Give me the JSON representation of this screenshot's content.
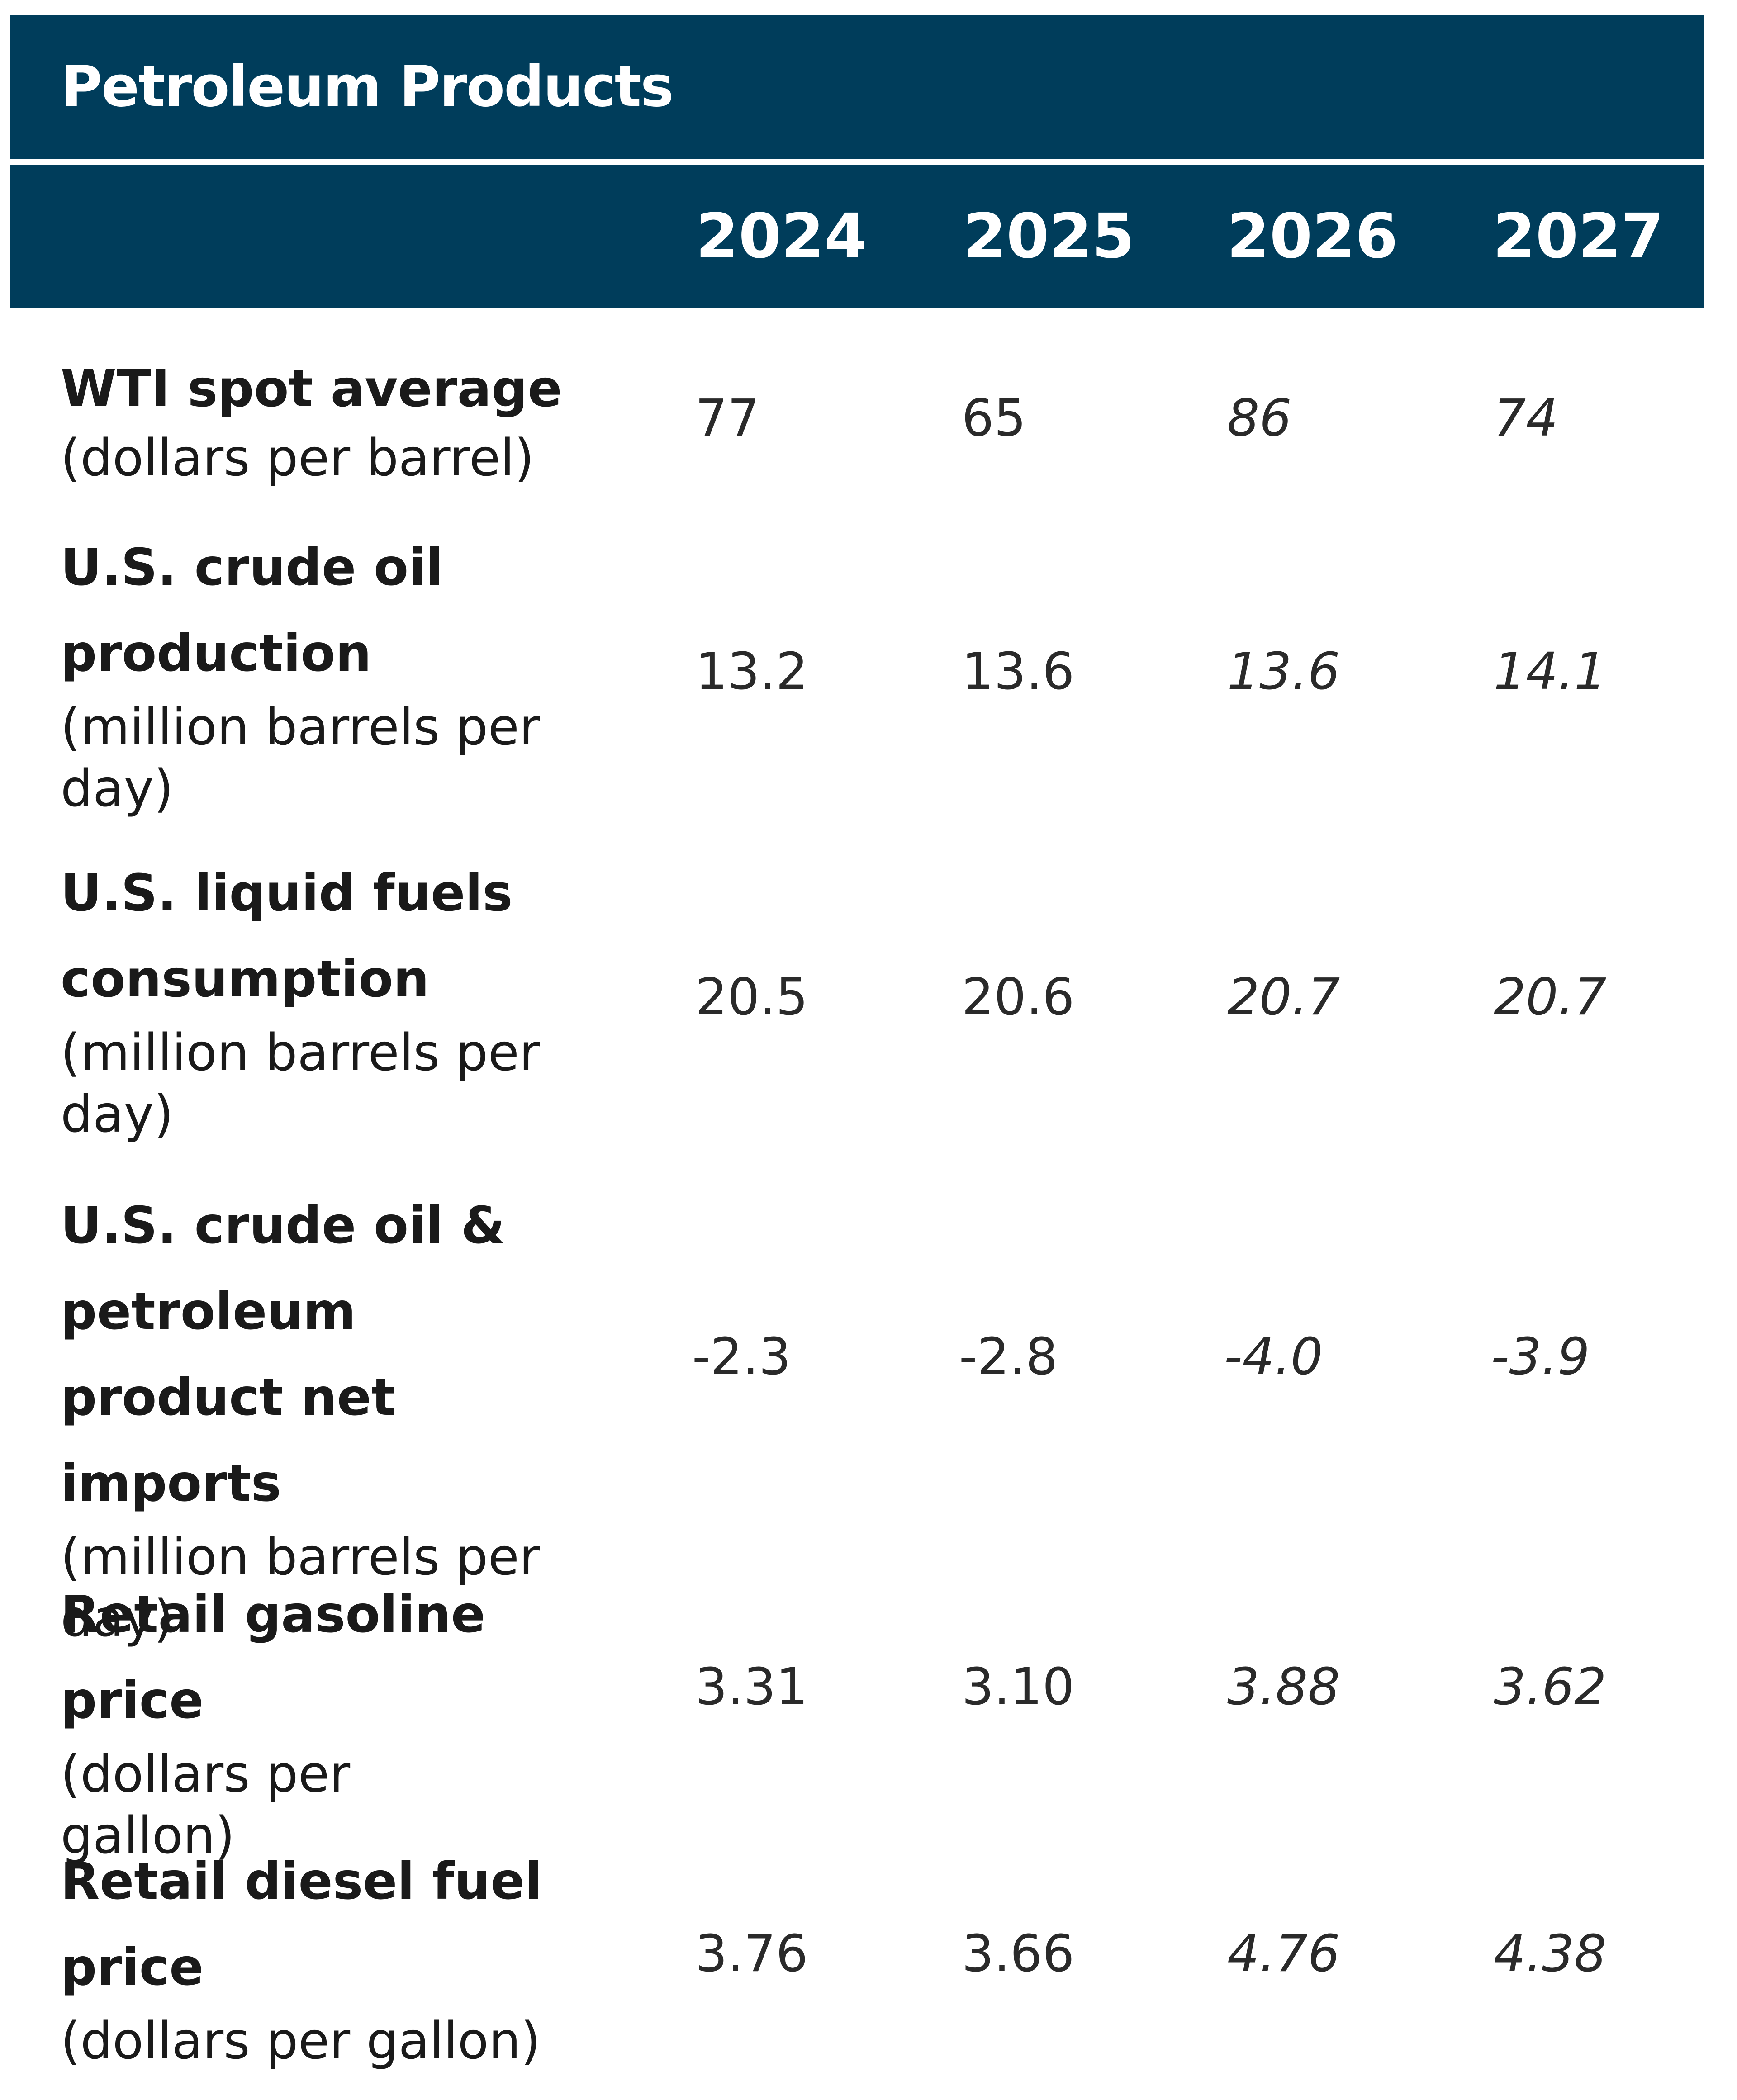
{
  "table": {
    "title": "Petroleum Products",
    "years": [
      "2024",
      "2025",
      "2026",
      "2027"
    ],
    "rows": [
      {
        "label": "WTI spot average",
        "unit": "(dollars per barrel)",
        "values": [
          "77",
          "65",
          "86",
          "74"
        ]
      },
      {
        "label": "U.S. crude oil production",
        "unit": "(million barrels per day)",
        "values": [
          "13.2",
          "13.6",
          "13.6",
          "14.1"
        ]
      },
      {
        "label": "U.S. liquid fuels consumption",
        "unit": "(million barrels per day)",
        "values": [
          "20.5",
          "20.6",
          "20.7",
          "20.7"
        ]
      },
      {
        "label": "U.S. crude oil & petroleum product net imports",
        "unit": "(million barrels per day)",
        "values": [
          "-2.3",
          "-2.8",
          "-4.0",
          "-3.9"
        ]
      },
      {
        "label": "Retail gasoline price",
        "unit": "(dollars per gallon)",
        "values": [
          "3.31",
          "3.10",
          "3.88",
          "3.62"
        ]
      },
      {
        "label": "Retail diesel fuel price",
        "unit": "(dollars per gallon)",
        "values": [
          "3.76",
          "3.66",
          "4.76",
          "4.38"
        ]
      }
    ]
  }
}
